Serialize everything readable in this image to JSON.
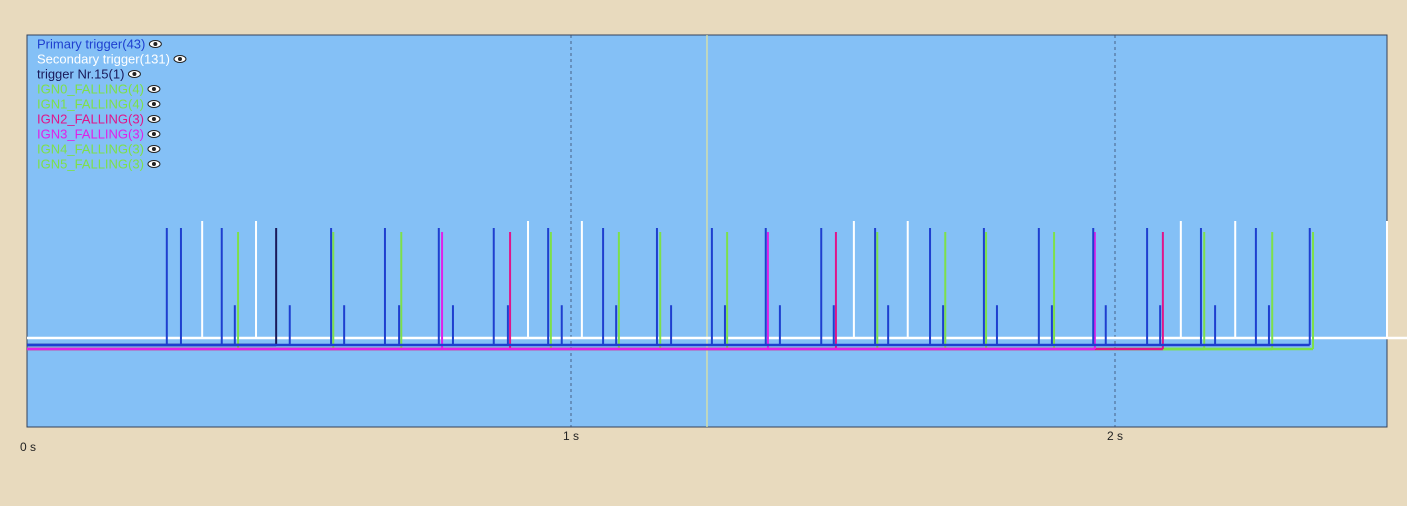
{
  "chart_data": {
    "type": "pulse",
    "xlim": [
      0,
      2.5
    ],
    "xticks": [
      {
        "value": 0,
        "label": "0 s"
      },
      {
        "value": 1,
        "label": "1 s"
      },
      {
        "value": 2,
        "label": "2 s"
      }
    ],
    "grid": true,
    "cursor": 1.25,
    "series": [
      {
        "name": "Primary trigger(43)",
        "color": "#1e3fcf",
        "x": [
          0.257,
          0.283,
          0.358,
          0.382,
          0.483,
          0.559,
          0.583,
          0.658,
          0.684,
          0.757,
          0.783,
          0.858,
          0.884,
          0.958,
          0.983,
          1.059,
          1.083,
          1.158,
          1.184,
          1.259,
          1.283,
          1.358,
          1.384,
          1.46,
          1.483,
          1.559,
          1.583,
          1.66,
          1.684,
          1.759,
          1.783,
          1.86,
          1.884,
          1.96,
          1.983,
          2.059,
          2.083,
          2.158,
          2.184,
          2.259,
          2.283,
          2.358
        ],
        "values": [
          1,
          1,
          1,
          0.34,
          0.34,
          1,
          0.34,
          1,
          0.34,
          1,
          0.34,
          1,
          0.34,
          1,
          0.34,
          1,
          0.34,
          1,
          0.34,
          1,
          0.34,
          1,
          0.34,
          1,
          0.34,
          1,
          0.34,
          1,
          0.34,
          1,
          0.34,
          1,
          0.34,
          1,
          0.34,
          1,
          0.34,
          1,
          0.34,
          1,
          0.34,
          1
        ]
      },
      {
        "name": "Secondary trigger(131)",
        "color": "#ffffff",
        "x": [
          0.322,
          0.421,
          0.921,
          1.02,
          1.52,
          1.619,
          2.121,
          2.221,
          2.5
        ],
        "values": [
          1,
          1,
          1,
          1,
          1,
          1,
          1,
          1,
          1
        ]
      },
      {
        "name": "trigger Nr.15(1)",
        "color": "#1a1a5a",
        "x": [
          0.458
        ],
        "values": [
          1
        ]
      },
      {
        "name": "IGN0_FALLING(4)",
        "color": "#7de04a",
        "x": [
          0.388,
          0.963,
          1.563,
          2.164
        ],
        "values": [
          1,
          1,
          1,
          1
        ]
      },
      {
        "name": "IGN1_FALLING(4)",
        "color": "#7de04a",
        "x": [
          0.563,
          1.164,
          1.763,
          2.364
        ],
        "values": [
          1,
          1,
          1,
          1
        ]
      },
      {
        "name": "IGN2_FALLING(3)",
        "color": "#e0158a",
        "x": [
          0.888,
          1.487,
          2.088
        ],
        "values": [
          1,
          1,
          1
        ]
      },
      {
        "name": "IGN3_FALLING(3)",
        "color": "#e020e8",
        "x": [
          0.763,
          1.362,
          1.963
        ],
        "values": [
          1,
          1,
          1
        ]
      },
      {
        "name": "IGN4_FALLING(3)",
        "color": "#7de04a",
        "x": [
          0.688,
          1.287,
          1.888
        ],
        "values": [
          1,
          1,
          1
        ]
      },
      {
        "name": "IGN5_FALLING(3)",
        "color": "#7de04a",
        "x": [
          1.088,
          1.688,
          2.289
        ],
        "values": [
          1,
          1,
          1
        ]
      }
    ]
  }
}
